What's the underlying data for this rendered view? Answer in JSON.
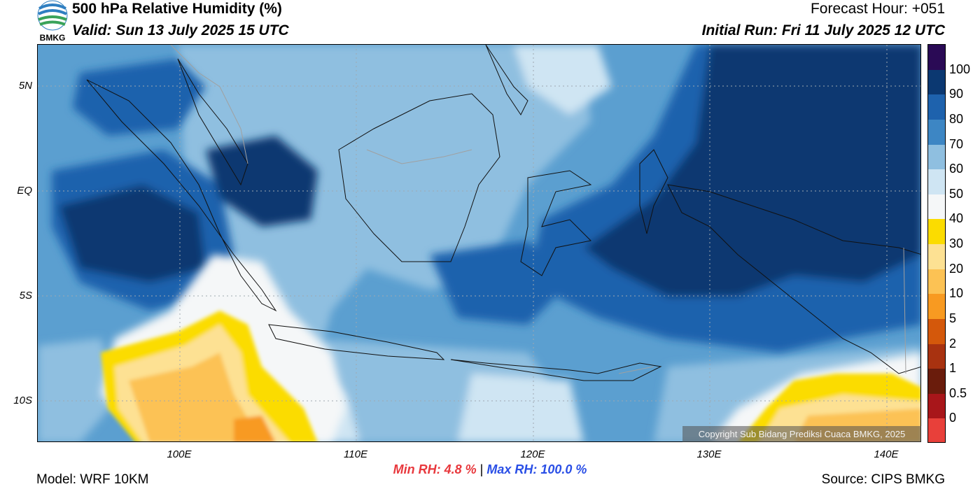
{
  "header": {
    "title": "500 hPa Relative Humidity (%)",
    "valid": "Valid: Sun 13 July 2025 15 UTC",
    "forecast_hour": "Forecast Hour: +051",
    "initial_run": "Initial Run: Fri 11 July 2025 12 UTC",
    "logo_text": "BMKG"
  },
  "map": {
    "lat_labels": [
      "5N",
      "EQ",
      "5S",
      "10S"
    ],
    "lon_labels": [
      "100E",
      "110E",
      "120E",
      "130E",
      "140E"
    ],
    "copyright": "Copyright Sub Bidang Prediksi Cuaca BMKG, 2025"
  },
  "colorbar": {
    "labels": [
      "100",
      "90",
      "80",
      "70",
      "60",
      "50",
      "40",
      "30",
      "20",
      "10",
      "5",
      "2",
      "1",
      "0.5",
      "0"
    ],
    "colors": [
      "#2a0a55",
      "#0b3871",
      "#1e62ad",
      "#3d86c4",
      "#8fbfe0",
      "#cfe5f3",
      "#f5f7f8",
      "#fbdc00",
      "#fde193",
      "#fcc254",
      "#f89a21",
      "#d4580b",
      "#a83210",
      "#6a1c0c",
      "#a8161a",
      "#e8403a"
    ]
  },
  "stats": {
    "min_label": "Min RH:",
    "min_value": "4.8 %",
    "separator": "|",
    "max_label": "Max RH:",
    "max_value": "100.0 %"
  },
  "footer": {
    "model": "Model: WRF 10KM",
    "source": "Source: CIPS BMKG"
  }
}
